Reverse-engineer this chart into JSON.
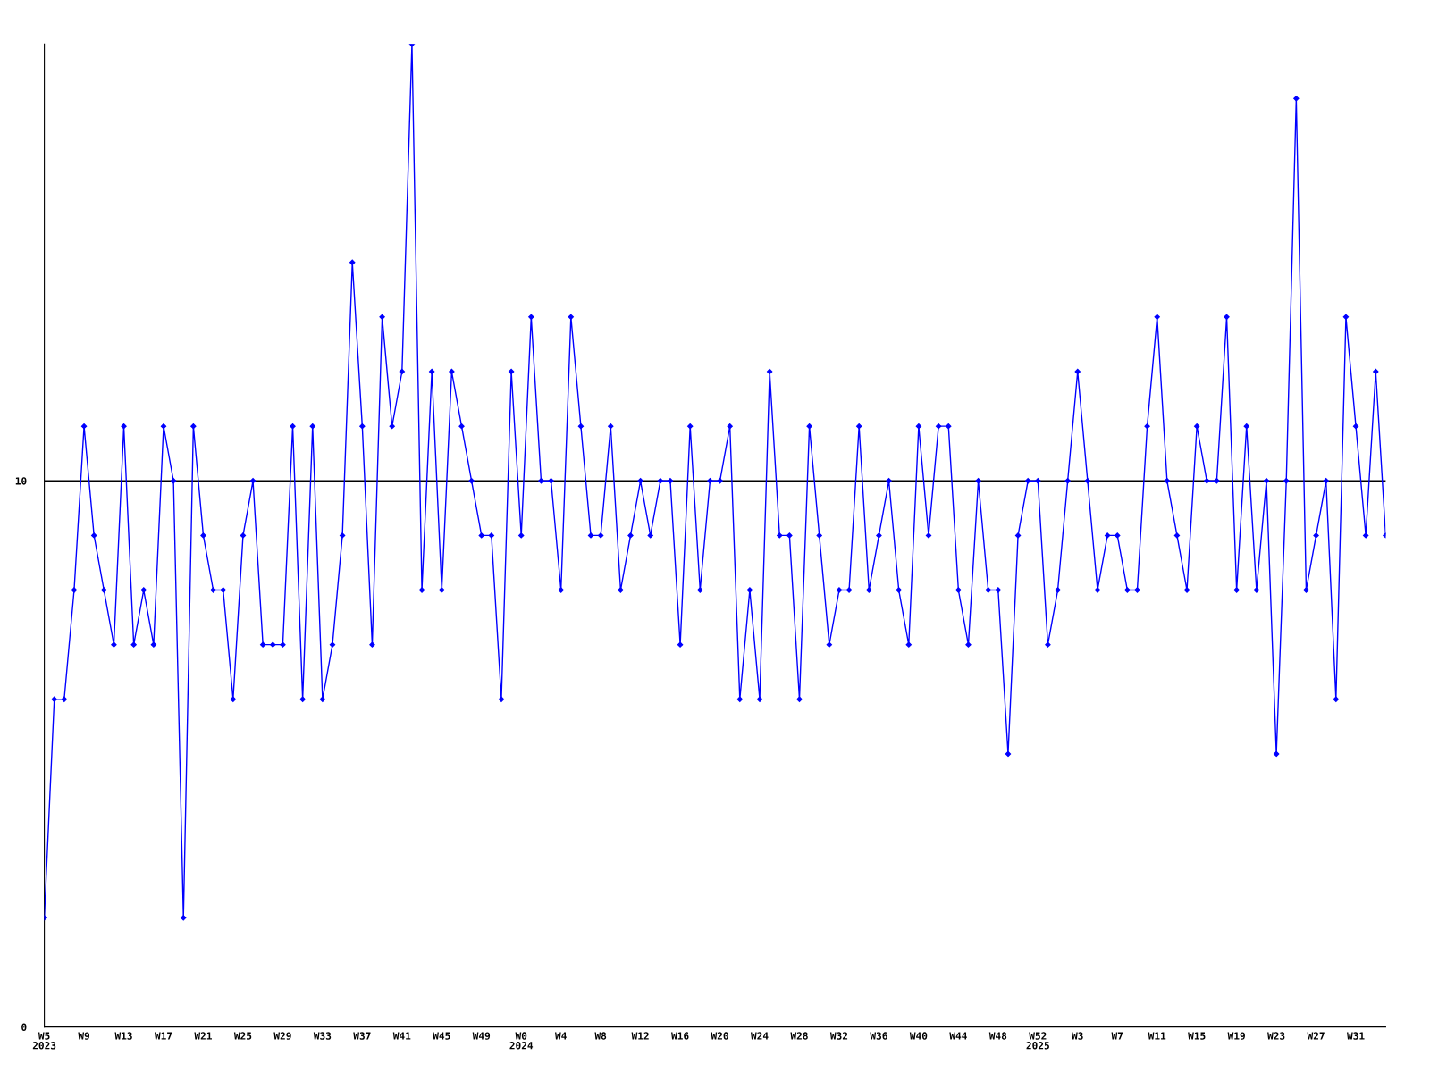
{
  "chart_data": {
    "type": "line",
    "categories": [
      "W5\n2023",
      null,
      null,
      null,
      "W9",
      null,
      null,
      null,
      "W13",
      null,
      null,
      null,
      "W17",
      null,
      null,
      null,
      "W21",
      null,
      null,
      null,
      "W25",
      null,
      null,
      null,
      "W29",
      null,
      null,
      null,
      "W33",
      null,
      null,
      null,
      "W37",
      null,
      null,
      null,
      "W41",
      null,
      null,
      null,
      "W45",
      null,
      null,
      null,
      "W49",
      null,
      null,
      null,
      "W0\n2024",
      null,
      null,
      null,
      "W4",
      null,
      null,
      null,
      "W8",
      null,
      null,
      null,
      "W12",
      null,
      null,
      null,
      "W16",
      null,
      null,
      null,
      "W20",
      null,
      null,
      null,
      "W24",
      null,
      null,
      null,
      "W28",
      null,
      null,
      null,
      "W32",
      null,
      null,
      null,
      "W36",
      null,
      null,
      null,
      "W40",
      null,
      null,
      null,
      "W44",
      null,
      null,
      null,
      "W48",
      null,
      null,
      null,
      "W52\n2025",
      null,
      null,
      null,
      "W3",
      null,
      null,
      null,
      "W7",
      null,
      null,
      null,
      "W11",
      null,
      null,
      null,
      "W15",
      null,
      null,
      null,
      "W19",
      null,
      null,
      null,
      "W23",
      null,
      null,
      null,
      "W27",
      null,
      null,
      null,
      "W31",
      null,
      null,
      null
    ],
    "series": [
      {
        "color": "#0000ff",
        "values": [
          2,
          6,
          6,
          8,
          11,
          9,
          8,
          7,
          11,
          7,
          8,
          7,
          11,
          10,
          2,
          11,
          9,
          8,
          8,
          6,
          9,
          10,
          7,
          7,
          7,
          11,
          6,
          11,
          6,
          7,
          9,
          14,
          11,
          7,
          13,
          11,
          12,
          18,
          8,
          12,
          8,
          12,
          11,
          10,
          9,
          9,
          6,
          12,
          9,
          13,
          10,
          10,
          8,
          13,
          11,
          9,
          9,
          11,
          8,
          9,
          10,
          9,
          10,
          10,
          7,
          11,
          8,
          10,
          10,
          11,
          6,
          8,
          6,
          12,
          9,
          9,
          6,
          11,
          9,
          7,
          8,
          8,
          11,
          8,
          9,
          10,
          8,
          7,
          11,
          9,
          11,
          11,
          8,
          7,
          10,
          8,
          8,
          5,
          9,
          10,
          10,
          7,
          8,
          10,
          12,
          10,
          8,
          9,
          9,
          8,
          8,
          11,
          13,
          10,
          9,
          8,
          11,
          10,
          10,
          13,
          8,
          11,
          8,
          10,
          5,
          10,
          17,
          8,
          9,
          10,
          6,
          13,
          11,
          9,
          12,
          9
        ]
      }
    ],
    "ylim": [
      0,
      18
    ],
    "yticks": [
      0,
      10
    ],
    "ref_lines": [
      {
        "axis": "y",
        "value": 10,
        "color": "#000000"
      }
    ],
    "marker": "diamond",
    "line_style": "solid",
    "grid": false
  }
}
